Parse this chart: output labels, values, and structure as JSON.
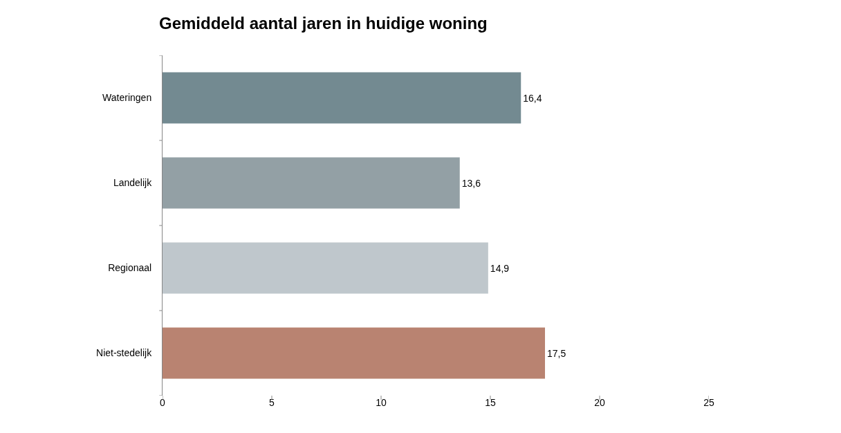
{
  "chart_data": {
    "type": "bar",
    "orientation": "horizontal",
    "title": "Gemiddeld aantal jaren in huidige woning",
    "categories": [
      "Wateringen",
      "Landelijk",
      "Regionaal",
      "Niet-stedelijk"
    ],
    "values": [
      16.4,
      13.6,
      14.9,
      17.5
    ],
    "value_labels": [
      "16,4",
      "13,6",
      "14,9",
      "17,5"
    ],
    "colors": [
      "#738a91",
      "#93a0a5",
      "#bfc7cc",
      "#b98371"
    ],
    "xlim": [
      0,
      25
    ],
    "xticks": [
      0,
      5,
      10,
      15,
      20,
      25
    ]
  }
}
